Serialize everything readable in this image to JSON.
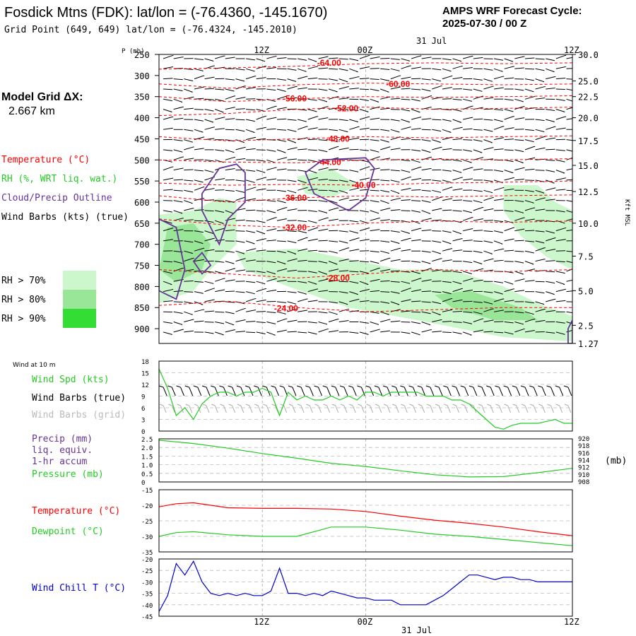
{
  "header": {
    "station_title": "Fosdick Mtns (FDK):  lat/lon = (-76.4360, -145.1670)",
    "grid_point": "Grid Point (649, 649) lat/lon = (-76.4324, -145.2010)",
    "cycle_label": "AMPS WRF Forecast Cycle:",
    "cycle_value": "2025-07-30 / 00  Z"
  },
  "model_grid": {
    "label": "Model Grid ΔX:",
    "value": "2.667 km"
  },
  "time_axis": {
    "ticks": [
      "12Z",
      "00Z",
      "12Z"
    ],
    "date_label": "31  Jul",
    "date_label_bottom": "31  Jul"
  },
  "legend_upper": {
    "temperature": "Temperature (°C)",
    "rh": "RH (%, WRT liq. wat.)",
    "cloud": "Cloud/Precip Outline",
    "wind": "Wind Barbs (kts) (true)",
    "rh_levels": [
      "RH > 70%",
      "RH > 80%",
      "RH > 90%"
    ],
    "rh_colors": [
      "#ccf7cc",
      "#99e699",
      "#33dd33"
    ]
  },
  "legend_wind": {
    "small": "Wind at 10 m",
    "spd": "Wind Spd (kts)",
    "true": "Wind Barbs (true)",
    "grid": "Wind Barbs (grid)"
  },
  "legend_precip": {
    "line1": "Precip (mm)",
    "line2": "liq. equiv.",
    "line3": "1-hr accum",
    "pressure": "Pressure (mb)",
    "right_unit": "(mb)"
  },
  "legend_temp": {
    "temperature": "Temperature (°C)",
    "dewpoint": "Dewpoint (°C)"
  },
  "legend_chill": {
    "label": "Wind Chill T (°C)"
  },
  "colors": {
    "temperature": "#ff0000",
    "dewpoint": "#22cc22",
    "wind_speed": "#22cc22",
    "pressure": "#22cc22",
    "precip": "#663399",
    "cloud_outline": "#663399",
    "wind_chill": "#0000cc"
  },
  "chart_data": [
    {
      "type": "heatmap",
      "ylabel": "P (mb)",
      "pressure_ticks": [
        "250",
        "300",
        "350",
        "400",
        "450",
        "500",
        "550",
        "600",
        "650",
        "700",
        "750",
        "800",
        "850",
        "900"
      ],
      "right_ylabel": "Kft MSL",
      "height_ticks": [
        {
          "label": "30.0",
          "p": 250
        },
        {
          "label": "25.0",
          "p": 313
        },
        {
          "label": "22.5",
          "p": 350
        },
        {
          "label": "20.0",
          "p": 400
        },
        {
          "label": "17.5",
          "p": 454
        },
        {
          "label": "15.0",
          "p": 513
        },
        {
          "label": "12.5",
          "p": 575
        },
        {
          "label": "10.0",
          "p": 650
        },
        {
          "label": "7.5",
          "p": 728
        },
        {
          "label": "5.0",
          "p": 810
        },
        {
          "label": "2.5",
          "p": 892
        },
        {
          "label": "1.27",
          "p": 935
        }
      ],
      "x_range_hours": [
        0,
        48
      ],
      "isotherms": [
        {
          "label": "-64.00",
          "at": [
            20,
            270
          ],
          "path": [
            [
              0,
              285
            ],
            [
              8,
              282
            ],
            [
              16,
              278
            ],
            [
              24,
              272
            ],
            [
              32,
              270
            ],
            [
              40,
              272
            ],
            [
              48,
              270
            ]
          ]
        },
        {
          "label": "-60.00",
          "at": [
            28,
            320
          ],
          "path": [
            [
              0,
              320
            ],
            [
              8,
              330
            ],
            [
              16,
              322
            ],
            [
              24,
              318
            ],
            [
              32,
              320
            ],
            [
              40,
              322
            ],
            [
              48,
              320
            ]
          ]
        },
        {
          "label": "-56.00",
          "at": [
            16,
            355
          ],
          "path": [
            [
              0,
              350
            ],
            [
              8,
              362
            ],
            [
              16,
              355
            ],
            [
              24,
              350
            ],
            [
              32,
              352
            ],
            [
              40,
              350
            ],
            [
              48,
              348
            ]
          ]
        },
        {
          "label": "-52.00",
          "at": [
            22,
            378
          ],
          "path": [
            [
              0,
              395
            ],
            [
              8,
              390
            ],
            [
              16,
              380
            ],
            [
              24,
              375
            ],
            [
              32,
              380
            ],
            [
              40,
              378
            ],
            [
              48,
              375
            ]
          ]
        },
        {
          "label": "-48.00",
          "at": [
            21,
            450
          ],
          "path": [
            [
              0,
              445
            ],
            [
              8,
              455
            ],
            [
              16,
              450
            ],
            [
              24,
              445
            ],
            [
              32,
              448
            ],
            [
              40,
              445
            ],
            [
              48,
              443
            ]
          ]
        },
        {
          "label": "-44.00",
          "at": [
            20,
            505
          ],
          "path": [
            [
              0,
              500
            ],
            [
              8,
              505
            ],
            [
              16,
              507
            ],
            [
              24,
              500
            ],
            [
              32,
              498
            ],
            [
              40,
              500
            ],
            [
              48,
              497
            ]
          ]
        },
        {
          "label": "-40.00",
          "at": [
            24,
            560
          ],
          "path": [
            [
              0,
              555
            ],
            [
              8,
              560
            ],
            [
              16,
              558
            ],
            [
              24,
              560
            ],
            [
              32,
              555
            ],
            [
              40,
              553
            ],
            [
              48,
              550
            ]
          ]
        },
        {
          "label": "-36.00",
          "at": [
            16,
            590
          ],
          "path": [
            [
              0,
              585
            ],
            [
              8,
              600
            ],
            [
              16,
              590
            ],
            [
              24,
              585
            ],
            [
              32,
              588
            ],
            [
              40,
              585
            ],
            [
              48,
              583
            ]
          ]
        },
        {
          "label": "-32.00",
          "at": [
            16,
            660
          ],
          "path": [
            [
              0,
              640
            ],
            [
              8,
              655
            ],
            [
              16,
              660
            ],
            [
              24,
              650
            ],
            [
              32,
              645
            ],
            [
              40,
              648
            ],
            [
              48,
              645
            ]
          ]
        },
        {
          "label": "-28.00",
          "at": [
            21,
            780
          ],
          "path": [
            [
              0,
              760
            ],
            [
              8,
              770
            ],
            [
              16,
              780
            ],
            [
              24,
              770
            ],
            [
              32,
              760
            ],
            [
              40,
              765
            ],
            [
              48,
              760
            ]
          ]
        },
        {
          "label": "-24.00",
          "at": [
            15,
            852
          ],
          "path": [
            [
              0,
              845
            ],
            [
              8,
              835
            ],
            [
              16,
              850
            ],
            [
              24,
              860
            ],
            [
              32,
              855
            ],
            [
              40,
              850
            ],
            [
              48,
              850
            ]
          ]
        }
      ]
    },
    {
      "type": "line",
      "name": "wind",
      "ylim": [
        0,
        18
      ],
      "yticks": [
        "0",
        "3",
        "6",
        "9",
        "12",
        "15",
        "18"
      ],
      "x_hours": [
        0,
        1,
        2,
        3,
        4,
        5,
        6,
        7,
        8,
        9,
        10,
        11,
        12,
        13,
        14,
        15,
        16,
        17,
        18,
        19,
        20,
        21,
        22,
        23,
        24,
        25,
        26,
        27,
        28,
        29,
        30,
        31,
        32,
        33,
        34,
        35,
        36,
        37,
        38,
        39,
        40,
        41,
        42,
        43,
        44,
        45,
        46,
        47,
        48
      ],
      "series": [
        {
          "name": "Wind Spd (kts)",
          "values": [
            16,
            11,
            4,
            6,
            3,
            7,
            9,
            10,
            10,
            9,
            10,
            10,
            11,
            10,
            4,
            10,
            8,
            9,
            8,
            8,
            9,
            8,
            9,
            8,
            10,
            10,
            9,
            10,
            10,
            10,
            10,
            9,
            9,
            9,
            8,
            8,
            7,
            5,
            3,
            1,
            0.5,
            1.5,
            2,
            2,
            2,
            2.5,
            3,
            2,
            2
          ]
        }
      ]
    },
    {
      "type": "line",
      "name": "pressure",
      "ylim_left": [
        0,
        2.5
      ],
      "yticks_left": [
        "0",
        "0.5",
        "1.0",
        "1.5",
        "2.0",
        "2.5"
      ],
      "ylim_right": [
        908,
        920
      ],
      "yticks_right": [
        "920",
        "918",
        "916",
        "914",
        "912",
        "910",
        "908"
      ],
      "x_hours": [
        0,
        4,
        8,
        12,
        16,
        20,
        24,
        28,
        32,
        36,
        40,
        44,
        48
      ],
      "series": [
        {
          "name": "Pressure (mb)",
          "values": [
            919.6,
            918.7,
            917.4,
            915.9,
            914.6,
            913.2,
            912.3,
            911.1,
            910.0,
            909.4,
            909.5,
            910.6,
            911.8
          ]
        }
      ]
    },
    {
      "type": "line",
      "name": "temperature",
      "ylim": [
        -35,
        -15
      ],
      "yticks": [
        "-15",
        "-20",
        "-25",
        "-30",
        "-35"
      ],
      "x_hours": [
        0,
        2,
        4,
        8,
        12,
        16,
        20,
        24,
        28,
        32,
        36,
        40,
        44,
        48
      ],
      "series": [
        {
          "name": "Temperature (°C)",
          "values": [
            -20.5,
            -19.5,
            -19.2,
            -20.8,
            -21.0,
            -21.0,
            -21.2,
            -22.0,
            -23.5,
            -24.8,
            -25.8,
            -27.0,
            -28.5,
            -29.8
          ]
        },
        {
          "name": "Dewpoint (°C)",
          "values": [
            -30.0,
            -28.8,
            -28.5,
            -29.5,
            -30.0,
            -30.0,
            -27.0,
            -27.0,
            -28.0,
            -29.3,
            -30.0,
            -31.0,
            -32.0,
            -33.0
          ]
        }
      ]
    },
    {
      "type": "line",
      "name": "wind_chill",
      "ylim": [
        -45,
        -20
      ],
      "yticks": [
        "-20",
        "-25",
        "-30",
        "-35",
        "-40",
        "-45"
      ],
      "x_hours": [
        0,
        1,
        2,
        3,
        4,
        5,
        6,
        7,
        8,
        9,
        10,
        11,
        12,
        13,
        14,
        15,
        16,
        17,
        18,
        19,
        20,
        21,
        22,
        23,
        24,
        25,
        26,
        27,
        28,
        29,
        30,
        31,
        32,
        33,
        34,
        35,
        36,
        37,
        38,
        39,
        40,
        41,
        42,
        43,
        44,
        45,
        46,
        47,
        48
      ],
      "series": [
        {
          "name": "Wind Chill T (°C)",
          "values": [
            -43,
            -36,
            -22,
            -27,
            -21,
            -30,
            -35,
            -36,
            -35,
            -36,
            -35,
            -36,
            -36,
            -34,
            -24,
            -35,
            -35,
            -36,
            -35,
            -36,
            -34,
            -35,
            -36,
            -37,
            -37,
            -38,
            -38,
            -38,
            -40,
            -40,
            -40,
            -40,
            -38,
            -36,
            -33,
            -30,
            -27,
            -27,
            -28,
            -29,
            -28,
            -28,
            -29,
            -29,
            -30,
            -30,
            -30,
            -30,
            -30
          ]
        }
      ]
    }
  ]
}
